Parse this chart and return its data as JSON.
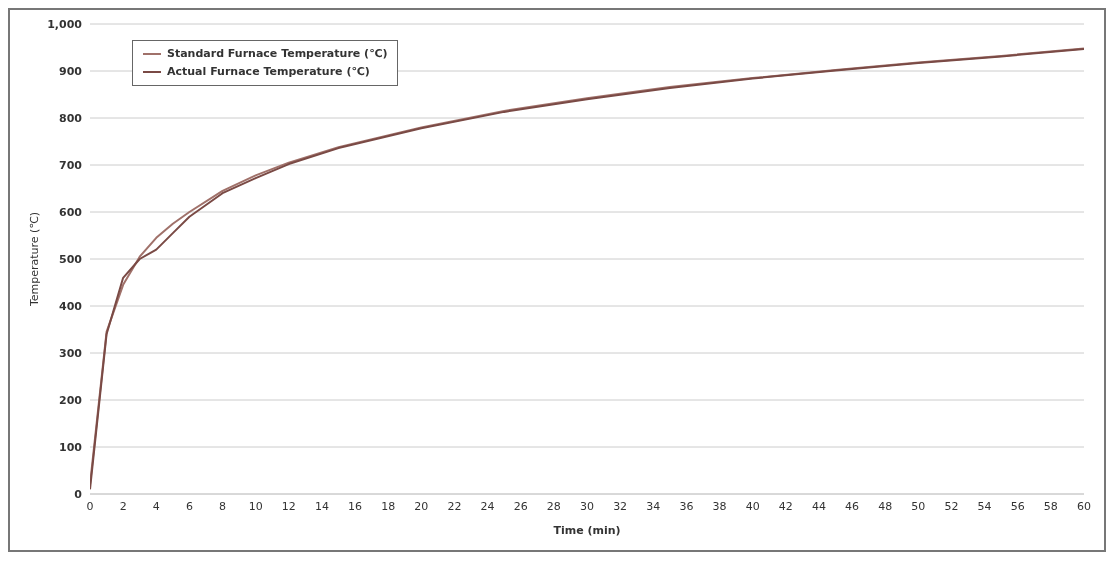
{
  "chart_data": {
    "type": "line",
    "xlabel": "Time (min)",
    "ylabel": "Temperature (℃)",
    "series": [
      {
        "name": "Standard Furnace Temperature (℃)",
        "color": "#a0716a",
        "x": [
          0,
          1,
          2,
          3,
          4,
          5,
          6,
          8,
          10,
          12,
          15,
          20,
          25,
          30,
          35,
          40,
          45,
          50,
          55,
          60
        ],
        "values": [
          20,
          345,
          445,
          505,
          545,
          575,
          600,
          645,
          678,
          705,
          738,
          780,
          815,
          842,
          866,
          885,
          902,
          918,
          932,
          948
        ]
      },
      {
        "name": "Actual Furnace Temperature (℃)",
        "color": "#7a4a45",
        "x": [
          0,
          1,
          2,
          3,
          4,
          5,
          6,
          8,
          10,
          12,
          15,
          20,
          25,
          30,
          35,
          40,
          45,
          50,
          55,
          60
        ],
        "values": [
          10,
          340,
          460,
          500,
          520,
          555,
          590,
          640,
          672,
          702,
          736,
          778,
          813,
          840,
          864,
          884,
          901,
          917,
          931,
          947
        ]
      }
    ],
    "xlim": [
      0,
      60
    ],
    "xticks": [
      0,
      2,
      4,
      6,
      8,
      10,
      12,
      14,
      16,
      18,
      20,
      22,
      24,
      26,
      28,
      30,
      32,
      34,
      36,
      38,
      40,
      42,
      44,
      46,
      48,
      50,
      52,
      54,
      56,
      58,
      60
    ],
    "ylim": [
      0,
      1000
    ],
    "yticks": [
      0,
      100,
      200,
      300,
      400,
      500,
      600,
      700,
      800,
      900,
      {
        "value": 1000,
        "label": "1,000"
      }
    ],
    "grid": "y",
    "legend": "top left",
    "marker": "none",
    "line_style": "solid"
  }
}
